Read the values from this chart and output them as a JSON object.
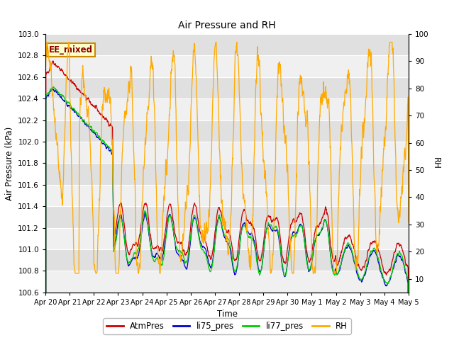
{
  "title": "Air Pressure and RH",
  "ylabel_left": "Air Pressure (kPa)",
  "ylabel_right": "RH",
  "xlabel": "Time",
  "ylim_left": [
    100.6,
    103.0
  ],
  "ylim_right": [
    5,
    100
  ],
  "yticks_left": [
    100.6,
    100.8,
    101.0,
    101.2,
    101.4,
    101.6,
    101.8,
    102.0,
    102.2,
    102.4,
    102.6,
    102.8,
    103.0
  ],
  "yticks_right": [
    10,
    20,
    30,
    40,
    50,
    60,
    70,
    80,
    90,
    100
  ],
  "colors": {
    "AtmPres": "#cc0000",
    "li75_pres": "#0000cc",
    "li77_pres": "#00cc00",
    "RH": "#ffaa00"
  },
  "annotation_text": "EE_mixed",
  "bg_color": "#ffffff",
  "band_colors": [
    "#f0f0f0",
    "#e0e0e0"
  ],
  "x_tick_labels": [
    "Apr 20",
    "Apr 21",
    "Apr 22",
    "Apr 23",
    "Apr 24",
    "Apr 25",
    "Apr 26",
    "Apr 27",
    "Apr 28",
    "Apr 29",
    "Apr 30",
    "May 1",
    "May 2",
    "May 3",
    "May 4",
    "May 5"
  ]
}
